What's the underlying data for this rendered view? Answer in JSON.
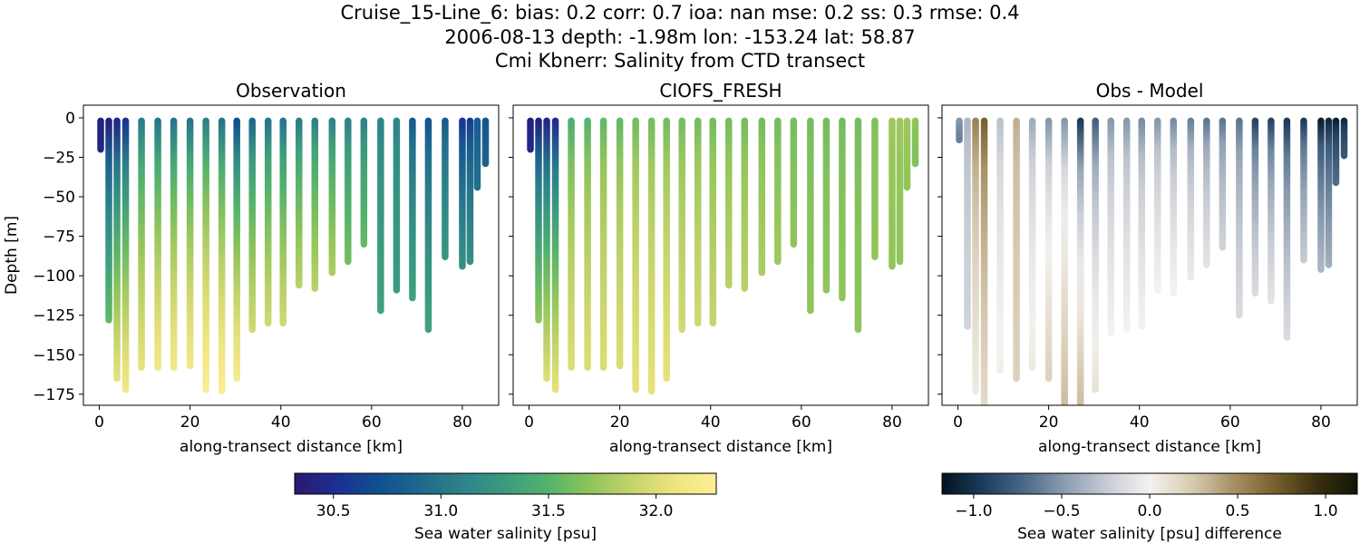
{
  "header": {
    "line1": "Cruise_15-Line_6: bias: 0.2  corr: 0.7  ioa: nan  mse: 0.2  ss: 0.3  rmse: 0.4",
    "line2": "2006-08-13 depth: -1.98m lon: -153.24 lat: 58.87",
    "line3": "Cmi Kbnerr: Salinity from CTD transect"
  },
  "chart_data": [
    {
      "type": "scatter",
      "title": "Observation",
      "xlabel": "along-transect distance [km]",
      "ylabel": "Depth [m]",
      "xlim": [
        -3.5,
        88
      ],
      "ylim": [
        -182,
        8
      ],
      "xticks": [
        0,
        20,
        40,
        60,
        80
      ],
      "yticks": [
        0,
        -25,
        -50,
        -75,
        -100,
        -125,
        -150,
        -175
      ],
      "colormap": "haline",
      "color_range": [
        30.32,
        32.28
      ],
      "casts": [
        {
          "x": 0.3,
          "bottom": -20,
          "surface": 30.4,
          "deep": 30.45
        },
        {
          "x": 2.1,
          "bottom": -128,
          "surface": 30.4,
          "deep": 31.55
        },
        {
          "x": 3.9,
          "bottom": -165,
          "surface": 30.45,
          "deep": 32.05
        },
        {
          "x": 5.8,
          "bottom": -172,
          "surface": 30.55,
          "deep": 32.15
        },
        {
          "x": 9.3,
          "bottom": -158,
          "surface": 31.05,
          "deep": 32.05
        },
        {
          "x": 12.9,
          "bottom": -158,
          "surface": 31.0,
          "deep": 32.15
        },
        {
          "x": 16.4,
          "bottom": -158,
          "surface": 31.0,
          "deep": 32.15
        },
        {
          "x": 20.0,
          "bottom": -157,
          "surface": 31.0,
          "deep": 32.15
        },
        {
          "x": 23.5,
          "bottom": -172,
          "surface": 31.1,
          "deep": 32.25
        },
        {
          "x": 27.0,
          "bottom": -173,
          "surface": 31.0,
          "deep": 32.25
        },
        {
          "x": 30.3,
          "bottom": -165,
          "surface": 30.7,
          "deep": 32.2
        },
        {
          "x": 33.7,
          "bottom": -134,
          "surface": 30.9,
          "deep": 31.95
        },
        {
          "x": 37.2,
          "bottom": -130,
          "surface": 31.0,
          "deep": 31.95
        },
        {
          "x": 40.5,
          "bottom": -130,
          "surface": 31.0,
          "deep": 31.95
        },
        {
          "x": 44.0,
          "bottom": -106,
          "surface": 31.05,
          "deep": 31.85
        },
        {
          "x": 47.5,
          "bottom": -108,
          "surface": 31.1,
          "deep": 31.85
        },
        {
          "x": 51.3,
          "bottom": -98,
          "surface": 31.1,
          "deep": 31.8
        },
        {
          "x": 54.8,
          "bottom": -91,
          "surface": 31.1,
          "deep": 31.6
        },
        {
          "x": 58.3,
          "bottom": -80,
          "surface": 31.1,
          "deep": 31.55
        },
        {
          "x": 62.0,
          "bottom": -122,
          "surface": 31.1,
          "deep": 31.35
        },
        {
          "x": 65.5,
          "bottom": -109,
          "surface": 31.1,
          "deep": 31.3
        },
        {
          "x": 69.0,
          "bottom": -114,
          "surface": 30.8,
          "deep": 31.35
        },
        {
          "x": 72.5,
          "bottom": -134,
          "surface": 30.75,
          "deep": 31.35
        },
        {
          "x": 76.2,
          "bottom": -88,
          "surface": 30.8,
          "deep": 31.25
        },
        {
          "x": 80.0,
          "bottom": -94,
          "surface": 30.55,
          "deep": 31.2
        },
        {
          "x": 81.7,
          "bottom": -91,
          "surface": 30.6,
          "deep": 31.2
        },
        {
          "x": 83.3,
          "bottom": -44,
          "surface": 30.8,
          "deep": 30.95
        },
        {
          "x": 85.1,
          "bottom": -29,
          "surface": 30.75,
          "deep": 30.85
        }
      ]
    },
    {
      "type": "scatter",
      "title": "CIOFS_FRESH",
      "xlabel": "along-transect distance [km]",
      "ylabel": "",
      "xlim": [
        -3.5,
        88
      ],
      "ylim": [
        -182,
        8
      ],
      "xticks": [
        0,
        20,
        40,
        60,
        80
      ],
      "yticks": [
        0,
        -25,
        -50,
        -75,
        -100,
        -125,
        -150,
        -175
      ],
      "colormap": "haline",
      "color_range": [
        30.32,
        32.28
      ],
      "casts": [
        {
          "x": 0.3,
          "bottom": -20,
          "surface": 30.4,
          "deep": 30.45
        },
        {
          "x": 2.1,
          "bottom": -128,
          "surface": 30.4,
          "deep": 31.7
        },
        {
          "x": 3.9,
          "bottom": -165,
          "surface": 30.45,
          "deep": 32.0
        },
        {
          "x": 5.8,
          "bottom": -172,
          "surface": 30.5,
          "deep": 32.05
        },
        {
          "x": 9.3,
          "bottom": -158,
          "surface": 31.45,
          "deep": 32.0
        },
        {
          "x": 12.9,
          "bottom": -158,
          "surface": 31.5,
          "deep": 32.0
        },
        {
          "x": 16.4,
          "bottom": -158,
          "surface": 31.55,
          "deep": 32.0
        },
        {
          "x": 20.0,
          "bottom": -157,
          "surface": 31.55,
          "deep": 32.0
        },
        {
          "x": 23.5,
          "bottom": -172,
          "surface": 31.6,
          "deep": 32.05
        },
        {
          "x": 27.0,
          "bottom": -173,
          "surface": 31.6,
          "deep": 32.05
        },
        {
          "x": 30.3,
          "bottom": -165,
          "surface": 31.6,
          "deep": 32.05
        },
        {
          "x": 33.7,
          "bottom": -134,
          "surface": 31.6,
          "deep": 31.95
        },
        {
          "x": 37.2,
          "bottom": -130,
          "surface": 31.6,
          "deep": 31.95
        },
        {
          "x": 40.5,
          "bottom": -130,
          "surface": 31.6,
          "deep": 31.9
        },
        {
          "x": 44.0,
          "bottom": -106,
          "surface": 31.6,
          "deep": 31.85
        },
        {
          "x": 47.5,
          "bottom": -108,
          "surface": 31.6,
          "deep": 31.85
        },
        {
          "x": 51.3,
          "bottom": -98,
          "surface": 31.6,
          "deep": 31.8
        },
        {
          "x": 54.8,
          "bottom": -91,
          "surface": 31.6,
          "deep": 31.75
        },
        {
          "x": 58.3,
          "bottom": -80,
          "surface": 31.6,
          "deep": 31.7
        },
        {
          "x": 62.0,
          "bottom": -122,
          "surface": 31.6,
          "deep": 31.7
        },
        {
          "x": 65.5,
          "bottom": -109,
          "surface": 31.6,
          "deep": 31.7
        },
        {
          "x": 69.0,
          "bottom": -114,
          "surface": 31.6,
          "deep": 31.7
        },
        {
          "x": 72.5,
          "bottom": -134,
          "surface": 31.6,
          "deep": 31.7
        },
        {
          "x": 76.2,
          "bottom": -88,
          "surface": 31.65,
          "deep": 31.7
        },
        {
          "x": 80.0,
          "bottom": -94,
          "surface": 31.75,
          "deep": 31.7
        },
        {
          "x": 81.7,
          "bottom": -91,
          "surface": 31.75,
          "deep": 31.7
        },
        {
          "x": 83.3,
          "bottom": -44,
          "surface": 31.75,
          "deep": 31.7
        },
        {
          "x": 85.1,
          "bottom": -29,
          "surface": 31.7,
          "deep": 31.65
        }
      ]
    },
    {
      "type": "scatter",
      "title": "Obs - Model",
      "xlabel": "along-transect distance [km]",
      "ylabel": "",
      "xlim": [
        -3.5,
        88
      ],
      "ylim": [
        -182,
        8
      ],
      "xticks": [
        0,
        20,
        40,
        60,
        80
      ],
      "yticks": [
        0,
        -25,
        -50,
        -75,
        -100,
        -125,
        -150,
        -175
      ],
      "colormap": "diff",
      "color_range": [
        -1.18,
        1.18
      ],
      "casts": [
        {
          "x": 0.3,
          "bottom": -14,
          "surface": -0.5,
          "deep": -0.6
        },
        {
          "x": 2.1,
          "bottom": -132,
          "surface": -0.35,
          "deep": -0.2
        },
        {
          "x": 3.9,
          "bottom": -173,
          "surface": 0.55,
          "deep": 0.05
        },
        {
          "x": 5.8,
          "bottom": -182,
          "surface": 0.7,
          "deep": 0.15
        },
        {
          "x": 9.3,
          "bottom": -160,
          "surface": -0.3,
          "deep": 0.02
        },
        {
          "x": 12.9,
          "bottom": -165,
          "surface": 0.35,
          "deep": 0.2
        },
        {
          "x": 16.4,
          "bottom": -158,
          "surface": -0.4,
          "deep": 0.05
        },
        {
          "x": 20.0,
          "bottom": -165,
          "surface": -0.5,
          "deep": 0.2
        },
        {
          "x": 23.5,
          "bottom": -182,
          "surface": -0.5,
          "deep": 0.3
        },
        {
          "x": 27.0,
          "bottom": -182,
          "surface": -0.95,
          "deep": 0.3
        },
        {
          "x": 30.3,
          "bottom": -172,
          "surface": -0.75,
          "deep": 0.1
        },
        {
          "x": 33.7,
          "bottom": -136,
          "surface": -0.5,
          "deep": 0.0
        },
        {
          "x": 37.2,
          "bottom": -134,
          "surface": -0.5,
          "deep": 0.0
        },
        {
          "x": 40.5,
          "bottom": -132,
          "surface": -0.55,
          "deep": 0.0
        },
        {
          "x": 44.0,
          "bottom": -109,
          "surface": -0.5,
          "deep": 0.0
        },
        {
          "x": 47.5,
          "bottom": -111,
          "surface": -0.55,
          "deep": 0.0
        },
        {
          "x": 51.3,
          "bottom": -101,
          "surface": -0.6,
          "deep": -0.05
        },
        {
          "x": 54.8,
          "bottom": -93,
          "surface": -0.65,
          "deep": -0.1
        },
        {
          "x": 58.3,
          "bottom": -82,
          "surface": -0.65,
          "deep": -0.2
        },
        {
          "x": 62.0,
          "bottom": -125,
          "surface": -0.65,
          "deep": -0.15
        },
        {
          "x": 65.5,
          "bottom": -111,
          "surface": -0.9,
          "deep": -0.15
        },
        {
          "x": 69.0,
          "bottom": -116,
          "surface": -0.9,
          "deep": -0.1
        },
        {
          "x": 72.5,
          "bottom": -139,
          "surface": -0.95,
          "deep": -0.15
        },
        {
          "x": 76.2,
          "bottom": -90,
          "surface": -0.95,
          "deep": -0.25
        },
        {
          "x": 80.0,
          "bottom": -96,
          "surface": -1.1,
          "deep": -0.35
        },
        {
          "x": 81.7,
          "bottom": -93,
          "surface": -1.05,
          "deep": -0.4
        },
        {
          "x": 83.3,
          "bottom": -41,
          "surface": -1.1,
          "deep": -0.7
        },
        {
          "x": 85.1,
          "bottom": -24,
          "surface": -1.05,
          "deep": -0.8
        }
      ]
    }
  ],
  "colorbars": [
    {
      "label": "Sea water salinity [psu]",
      "ticks": [
        "30.5",
        "31.0",
        "31.5",
        "32.0"
      ],
      "tick_values": [
        30.5,
        31.0,
        31.5,
        32.0
      ],
      "range": [
        30.32,
        32.28
      ],
      "colormap": "haline"
    },
    {
      "label": "Sea water salinity [psu] difference",
      "ticks": [
        "−1.0",
        "−0.5",
        "0.0",
        "0.5",
        "1.0"
      ],
      "tick_values": [
        -1.0,
        -0.5,
        0.0,
        0.5,
        1.0
      ],
      "range": [
        -1.18,
        1.18
      ],
      "colormap": "diff"
    }
  ],
  "colormaps": {
    "haline": [
      "#2a186c",
      "#1c2f93",
      "#10508f",
      "#20688d",
      "#2e8389",
      "#3b9b7f",
      "#54b36b",
      "#8ec45a",
      "#c4d36c",
      "#ede47e",
      "#fdee99"
    ],
    "diff": [
      "#03121e",
      "#1b3d5d",
      "#4a6a89",
      "#8e9fb1",
      "#c9ced5",
      "#f4f2ef",
      "#d8cbb3",
      "#a89266",
      "#77612d",
      "#3b3010",
      "#111507"
    ]
  }
}
